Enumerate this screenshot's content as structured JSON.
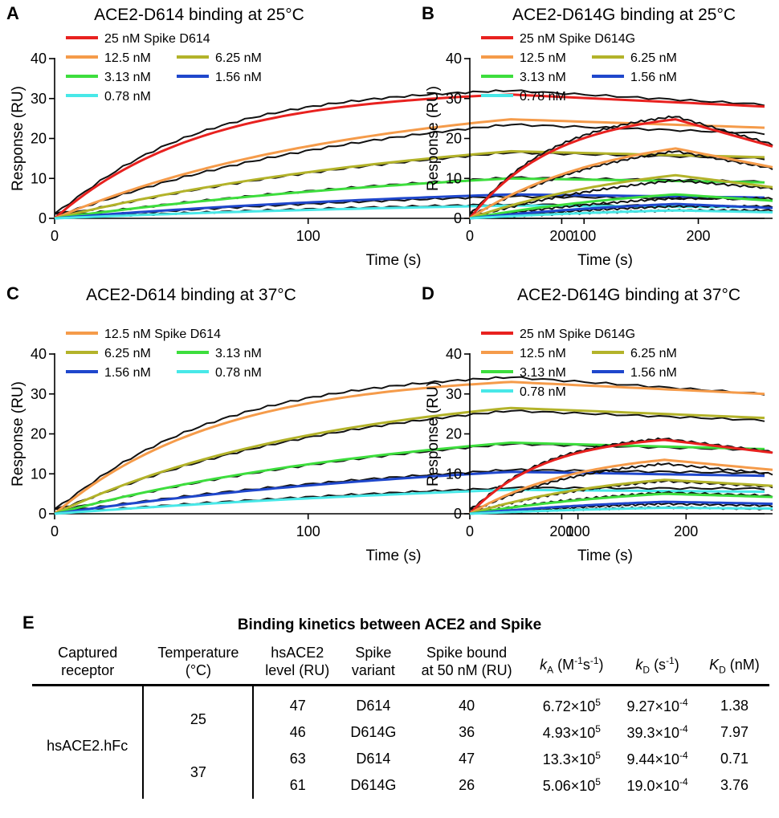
{
  "figure": {
    "panels": [
      {
        "letter": "A",
        "title": "ACE2-D614 binding at 25°C"
      },
      {
        "letter": "B",
        "title": "ACE2-D614G binding at 25°C"
      },
      {
        "letter": "C",
        "title": "ACE2-D614 binding at 37°C"
      },
      {
        "letter": "D",
        "title": "ACE2-D614G binding at 37°C"
      }
    ],
    "x_axis_label": "Time (s)",
    "y_axis_label": "Response (RU)"
  },
  "chart_data": [
    {
      "panel": "A",
      "type": "line",
      "title": "ACE2-D614 binding at 25°C",
      "xlabel": "Time (s)",
      "ylabel": "Response (RU)",
      "xlim": [
        0,
        280
      ],
      "ylim": [
        0,
        40
      ],
      "xticks": [
        0,
        100,
        200
      ],
      "yticks": [
        0,
        10,
        20,
        30,
        40
      ],
      "legend_rows": [
        [
          0
        ],
        [
          1,
          2
        ],
        [
          3,
          4
        ],
        [
          5
        ]
      ],
      "series": [
        {
          "name": "25 nM Spike D614",
          "color": "#e8211f",
          "peak": 31,
          "tau": 58,
          "end": 28
        },
        {
          "name": "12.5 nM",
          "color": "#f59b4a",
          "peak": 24.8,
          "tau": 120,
          "end": 22.7
        },
        {
          "name": "6.25 nM",
          "color": "#b3b32a",
          "peak": 16.8,
          "tau": 160,
          "end": 15.3
        },
        {
          "name": "3.13 nM",
          "color": "#3dde3d",
          "peak": 10,
          "tau": 190,
          "end": 9
        },
        {
          "name": "1.56 nM",
          "color": "#1f47cc",
          "peak": 6,
          "tau": 200,
          "end": 5.2
        },
        {
          "name": "0.78 nM",
          "color": "#48e8e8",
          "peak": 3.2,
          "tau": 210,
          "end": 2.8
        }
      ],
      "raw_traces": [
        {
          "peak": 32,
          "tau": 55,
          "end": 28.5
        },
        {
          "peak": 23.5,
          "tau": 125,
          "end": 21.3
        },
        {
          "peak": 16.5,
          "tau": 160,
          "end": 15
        },
        {
          "peak": 10.2,
          "tau": 190,
          "end": 9.2
        },
        {
          "peak": 5.5,
          "tau": 200,
          "end": 4.8
        },
        {
          "peak": 3.5,
          "tau": 210,
          "end": 2.9
        }
      ]
    },
    {
      "panel": "B",
      "type": "line",
      "title": "ACE2-D614G binding at 25°C",
      "xlabel": "Time (s)",
      "ylabel": "Response (RU)",
      "xlim": [
        0,
        265
      ],
      "ylim": [
        0,
        40
      ],
      "xticks": [
        0,
        100,
        200
      ],
      "yticks": [
        0,
        10,
        20,
        30,
        40
      ],
      "legend_rows": [
        [
          0
        ],
        [
          1,
          2
        ],
        [
          3,
          4
        ],
        [
          5
        ]
      ],
      "series": [
        {
          "name": "25 nM Spike D614G",
          "color": "#e8211f",
          "peak": 24.8,
          "tau": 75,
          "end": 18
        },
        {
          "name": "12.5 nM",
          "color": "#f59b4a",
          "peak": 17.5,
          "tau": 120,
          "end": 12.8
        },
        {
          "name": "6.25 nM",
          "color": "#b3b32a",
          "peak": 10.8,
          "tau": 160,
          "end": 7.8
        },
        {
          "name": "3.13 nM",
          "color": "#3dde3d",
          "peak": 6,
          "tau": 190,
          "end": 4.4
        },
        {
          "name": "1.56 nM",
          "color": "#1f47cc",
          "peak": 3.6,
          "tau": 200,
          "end": 2.6
        },
        {
          "name": "0.78 nM",
          "color": "#48e8e8",
          "peak": 2,
          "tau": 210,
          "end": 1.5
        }
      ],
      "raw_traces": [
        {
          "peak": 25.5,
          "tau": 73,
          "end": 18.5
        },
        {
          "peak": 16.8,
          "tau": 120,
          "end": 12.5
        },
        {
          "peak": 9.5,
          "tau": 160,
          "end": 7.5
        },
        {
          "peak": 5,
          "tau": 190,
          "end": 5
        },
        {
          "peak": 3,
          "tau": 200,
          "end": 3
        },
        {
          "peak": 2,
          "tau": 210,
          "end": 2
        }
      ]
    },
    {
      "panel": "C",
      "type": "line",
      "title": "ACE2-D614 binding at 37°C",
      "xlabel": "Time (s)",
      "ylabel": "Response (RU)",
      "xlim": [
        0,
        280
      ],
      "ylim": [
        0,
        40
      ],
      "xticks": [
        0,
        100,
        200
      ],
      "yticks": [
        0,
        10,
        20,
        30,
        40
      ],
      "legend_rows": [
        [
          0
        ],
        [
          1,
          2
        ],
        [
          3,
          4
        ]
      ],
      "series": [
        {
          "name": "12.5 nM Spike D614",
          "color": "#f59b4a",
          "peak": 33,
          "tau": 65,
          "end": 30
        },
        {
          "name": "6.25 nM",
          "color": "#b3b32a",
          "peak": 26.5,
          "tau": 110,
          "end": 24
        },
        {
          "name": "3.13 nM",
          "color": "#3dde3d",
          "peak": 17.8,
          "tau": 150,
          "end": 16.2
        },
        {
          "name": "1.56 nM",
          "color": "#1f47cc",
          "peak": 10.5,
          "tau": 180,
          "end": 9.5
        },
        {
          "name": "0.78 nM",
          "color": "#48e8e8",
          "peak": 6,
          "tau": 250,
          "end": 5.5
        }
      ],
      "raw_traces": [
        {
          "peak": 34.2,
          "tau": 62,
          "end": 30
        },
        {
          "peak": 25.8,
          "tau": 110,
          "end": 23.4
        },
        {
          "peak": 17.5,
          "tau": 150,
          "end": 16
        },
        {
          "peak": 11,
          "tau": 180,
          "end": 10.2
        },
        {
          "peak": 6.5,
          "tau": 250,
          "end": 6.3
        }
      ]
    },
    {
      "panel": "D",
      "type": "line",
      "title": "ACE2-D614G binding at 37°C",
      "xlabel": "Time (s)",
      "ylabel": "Response (RU)",
      "xlim": [
        0,
        280
      ],
      "ylim": [
        0,
        40
      ],
      "xticks": [
        0,
        100,
        200
      ],
      "yticks": [
        0,
        10,
        20,
        30,
        40
      ],
      "legend_rows": [
        [
          0
        ],
        [
          1,
          2
        ],
        [
          3,
          4
        ],
        [
          5
        ]
      ],
      "series": [
        {
          "name": "25 nM Spike D614G",
          "color": "#e8211f",
          "peak": 18.5,
          "tau": 70,
          "end": 15.3
        },
        {
          "name": "12.5 nM",
          "color": "#f59b4a",
          "peak": 13.5,
          "tau": 100,
          "end": 11
        },
        {
          "name": "6.25 nM",
          "color": "#b3b32a",
          "peak": 8.5,
          "tau": 140,
          "end": 7
        },
        {
          "name": "3.13 nM",
          "color": "#3dde3d",
          "peak": 5,
          "tau": 170,
          "end": 4.2
        },
        {
          "name": "1.56 nM",
          "color": "#1f47cc",
          "peak": 3,
          "tau": 190,
          "end": 2.5
        },
        {
          "name": "0.78 nM",
          "color": "#48e8e8",
          "peak": 1.5,
          "tau": 210,
          "end": 1.3
        }
      ],
      "raw_traces": [
        {
          "peak": 18.8,
          "tau": 68,
          "end": 15.5
        },
        {
          "peak": 12.5,
          "tau": 100,
          "end": 10
        },
        {
          "peak": 8.2,
          "tau": 140,
          "end": 6.8
        },
        {
          "peak": 5.3,
          "tau": 170,
          "end": 4.5
        },
        {
          "peak": 2.5,
          "tau": 190,
          "end": 2
        },
        {
          "peak": 1.6,
          "tau": 210,
          "end": 1.2
        }
      ]
    },
    {
      "panel": "E",
      "type": "table",
      "title": "Binding kinetics between ACE2 and Spike",
      "columns": [
        "Captured receptor",
        "Temperature (°C)",
        "hsACE2 level (RU)",
        "Spike variant",
        "Spike bound at 50 nM (RU)",
        "kA (M-1s-1)",
        "kD (s-1)",
        "KD (nM)"
      ],
      "rows": [
        [
          "hsACE2.hFc",
          "25",
          "47",
          "D614",
          "40",
          "6.72×10^5",
          "9.27×10^-4",
          "1.38"
        ],
        [
          "hsACE2.hFc",
          "25",
          "46",
          "D614G",
          "36",
          "4.93×10^5",
          "39.3×10^-4",
          "7.97"
        ],
        [
          "hsACE2.hFc",
          "37",
          "63",
          "D614",
          "47",
          "13.3×10^5",
          "9.44×10^-4",
          "0.71"
        ],
        [
          "hsACE2.hFc",
          "37",
          "61",
          "D614G",
          "26",
          "5.06×10^5",
          "19.0×10^-4",
          "3.76"
        ]
      ]
    }
  ],
  "table": {
    "letter": "E",
    "title": "Binding kinetics between ACE2 and Spike",
    "headers": {
      "receptor": {
        "line1": "Captured",
        "line2": "receptor"
      },
      "temperature": {
        "line1": "Temperature",
        "line2": "(°C)"
      },
      "level": {
        "line1": "hsACE2",
        "line2": "level (RU)"
      },
      "variant": {
        "line1": "Spike",
        "line2": "variant"
      },
      "bound": {
        "line1": "Spike bound",
        "line2": "at 50 nM (RU)"
      },
      "ka": {
        "symbol": "k",
        "sub": "A",
        "unit_pre": " (M",
        "unit_sup1": "-1",
        "unit_mid": "s",
        "unit_sup2": "-1",
        "unit_post": ")"
      },
      "kd": {
        "symbol": "k",
        "sub": "D",
        "unit_pre": " (s",
        "unit_sup": "-1",
        "unit_post": ")"
      },
      "KD": {
        "symbol": "K",
        "sub": "D",
        "unit": " (nM)"
      }
    },
    "receptor": "hsACE2.hFc",
    "temperatures": [
      "25",
      "37"
    ],
    "rows": [
      {
        "level": "47",
        "variant": "D614",
        "bound": "40",
        "ka_mant": "6.72×10",
        "ka_exp": "5",
        "kd_mant": "9.27×10",
        "kd_exp": "-4",
        "KD": "1.38"
      },
      {
        "level": "46",
        "variant": "D614G",
        "bound": "36",
        "ka_mant": "4.93×10",
        "ka_exp": "5",
        "kd_mant": "39.3×10",
        "kd_exp": "-4",
        "KD": "7.97"
      },
      {
        "level": "63",
        "variant": "D614",
        "bound": "47",
        "ka_mant": "13.3×10",
        "ka_exp": "5",
        "kd_mant": "9.44×10",
        "kd_exp": "-4",
        "KD": "0.71"
      },
      {
        "level": "61",
        "variant": "D614G",
        "bound": "26",
        "ka_mant": "5.06×10",
        "ka_exp": "5",
        "kd_mant": "19.0×10",
        "kd_exp": "-4",
        "KD": "3.76"
      }
    ]
  }
}
